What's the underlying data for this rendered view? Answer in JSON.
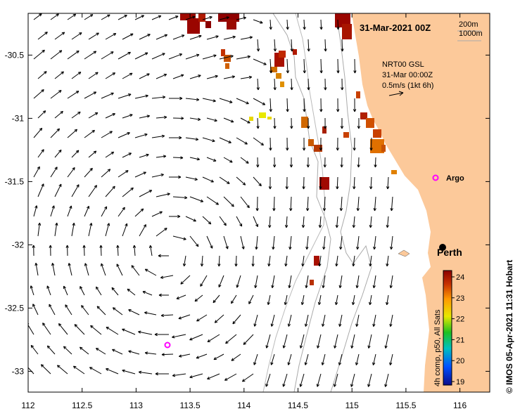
{
  "header": {
    "date_label": "31-Mar-2021 00Z"
  },
  "depth_legend": [
    "200m",
    "1000m"
  ],
  "current_key": {
    "line1": "NRT00 GSL",
    "line2": "31-Mar 00:00Z",
    "line3": "0.5m/s (1kt 6h)"
  },
  "colorbar": {
    "caption": "4h comp, p50, All Sats",
    "ticks": [
      "24",
      "23",
      "22",
      "21",
      "20",
      "19"
    ],
    "range": [
      19,
      24
    ]
  },
  "credit": "© IMOS 05-Apr-2021 11:31 Hobart",
  "markers": {
    "argo_label": "Argo",
    "city_label": "Perth"
  },
  "axes": {
    "x_ticks": [
      "112",
      "112.5",
      "113",
      "113.5",
      "114",
      "114.5",
      "115",
      "115.5",
      "116"
    ],
    "y_ticks": [
      "-30.5",
      "-31",
      "-31.5",
      "-32",
      "-32.5",
      "-33"
    ]
  },
  "colors": {
    "land": "#fcc99a",
    "sst_scale": [
      "#0b0b8a",
      "#0050ff",
      "#00c0c0",
      "#20c020",
      "#e8e800",
      "#ff9a00",
      "#c83200",
      "#8b0000"
    ],
    "argo_marker": "#ff00ff"
  }
}
